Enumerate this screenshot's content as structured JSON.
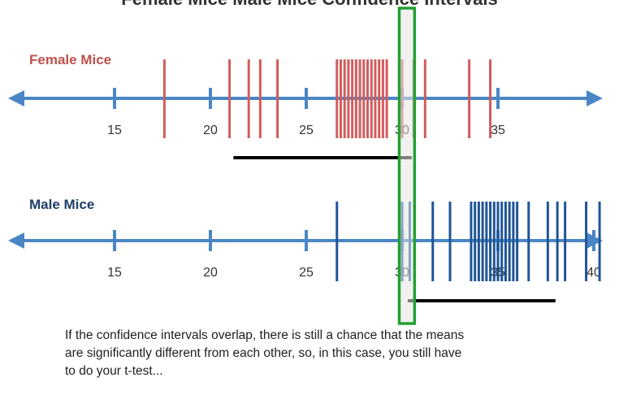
{
  "top_partial_title": "Female Mice Male Mice Confidence Intervals",
  "colors": {
    "axis": "#4a86c5",
    "female_ticks": "#d25c5c",
    "male_ticks": "#1f5597",
    "interval_bar": "#000000",
    "highlight_border": "#22a032",
    "highlight_fill": "#e6e6e6",
    "female_label": "#c0504d",
    "male_label": "#1f3e66"
  },
  "female": {
    "label": "Female Mice",
    "axis_ticks": [
      15,
      20,
      25,
      30,
      35
    ],
    "tick_labels": [
      "15",
      "20",
      "25",
      "30",
      "35"
    ],
    "data_values": [
      17.6,
      21.0,
      22.0,
      22.6,
      23.5,
      26.6,
      26.8,
      27.0,
      27.2,
      27.4,
      27.6,
      27.8,
      28.0,
      28.2,
      28.4,
      28.6,
      28.8,
      29.0,
      29.2,
      30.0,
      30.6,
      31.2,
      33.5,
      34.6
    ],
    "interval": [
      21.2,
      30.5
    ]
  },
  "male": {
    "label": "Male Mice",
    "axis_ticks": [
      15,
      20,
      25,
      30,
      35,
      40
    ],
    "tick_labels": [
      "15",
      "20",
      "25",
      "30",
      "35",
      "40"
    ],
    "data_values": [
      26.6,
      30.0,
      30.4,
      31.6,
      32.5,
      33.6,
      33.8,
      34.0,
      34.2,
      34.4,
      34.6,
      34.8,
      35.0,
      35.2,
      35.4,
      35.6,
      35.8,
      36.0,
      36.6,
      37.6,
      38.1,
      38.5,
      39.6,
      40.3
    ],
    "interval": [
      30.3,
      38.0
    ]
  },
  "highlight_range": [
    29.85,
    30.65
  ],
  "caption": [
    "If the confidence intervals overlap, there is still a chance that the means",
    "are significantly different from each other, so, in this case, you still have",
    "to do your t-test..."
  ]
}
